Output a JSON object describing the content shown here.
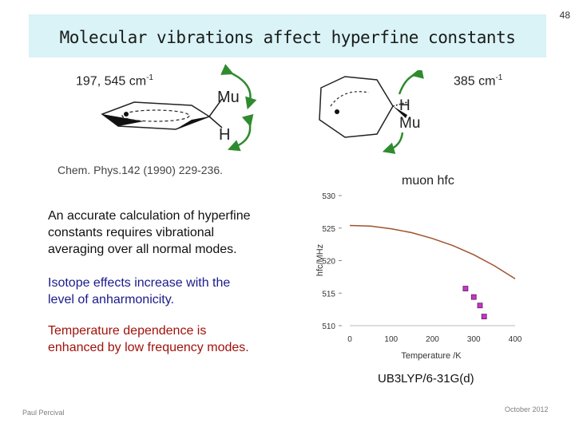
{
  "slide": {
    "number": "48",
    "title": "Molecular vibrations affect hyperfine constants",
    "left_freq": {
      "value": "197, 545 cm",
      "exp": "-1"
    },
    "right_freq": {
      "value": "385 cm",
      "exp": "-1"
    },
    "reference": "Chem. Phys.142 (1990) 229-236.",
    "paragraphs": [
      [
        "An accurate calculation of hyperfine",
        "constants requires vibrational",
        "averaging over all normal modes."
      ],
      [
        "Isotope effects increase with the",
        "level of anharmonicity."
      ],
      [
        "Temperature dependence is",
        "enhanced by low frequency modes."
      ]
    ],
    "method": "UB3LYP/6-31G(d)",
    "author": "Paul Percival",
    "date": "October 2012",
    "molecule_labels": {
      "mu": "Mu",
      "h": "H"
    }
  },
  "colors": {
    "title_bg": "#d9f3f6",
    "arrow": "#2e8b2e",
    "curve": "#a0522d",
    "points": "#cc33cc",
    "isotope_text": "#1a1a8c",
    "temperature_text": "#a0120a"
  },
  "chart_data": {
    "type": "scatter",
    "title": "muon hfc",
    "xlabel": "Temperature /K",
    "ylabel": "hfc/MHz",
    "xlim": [
      0,
      400
    ],
    "ylim": [
      510,
      530
    ],
    "xticks": [
      0,
      100,
      200,
      300,
      400
    ],
    "yticks": [
      510,
      515,
      520,
      525,
      530
    ],
    "grid": false,
    "series": [
      {
        "type": "line",
        "x": [
          0,
          50,
          100,
          150,
          200,
          250,
          300,
          350,
          400
        ],
        "y": [
          525.4,
          525.3,
          524.9,
          524.3,
          523.4,
          522.3,
          520.9,
          519.2,
          517.2
        ]
      },
      {
        "type": "points",
        "x": [
          280,
          300,
          315,
          325
        ],
        "y": [
          515.7,
          514.4,
          513.1,
          511.4
        ]
      }
    ]
  }
}
